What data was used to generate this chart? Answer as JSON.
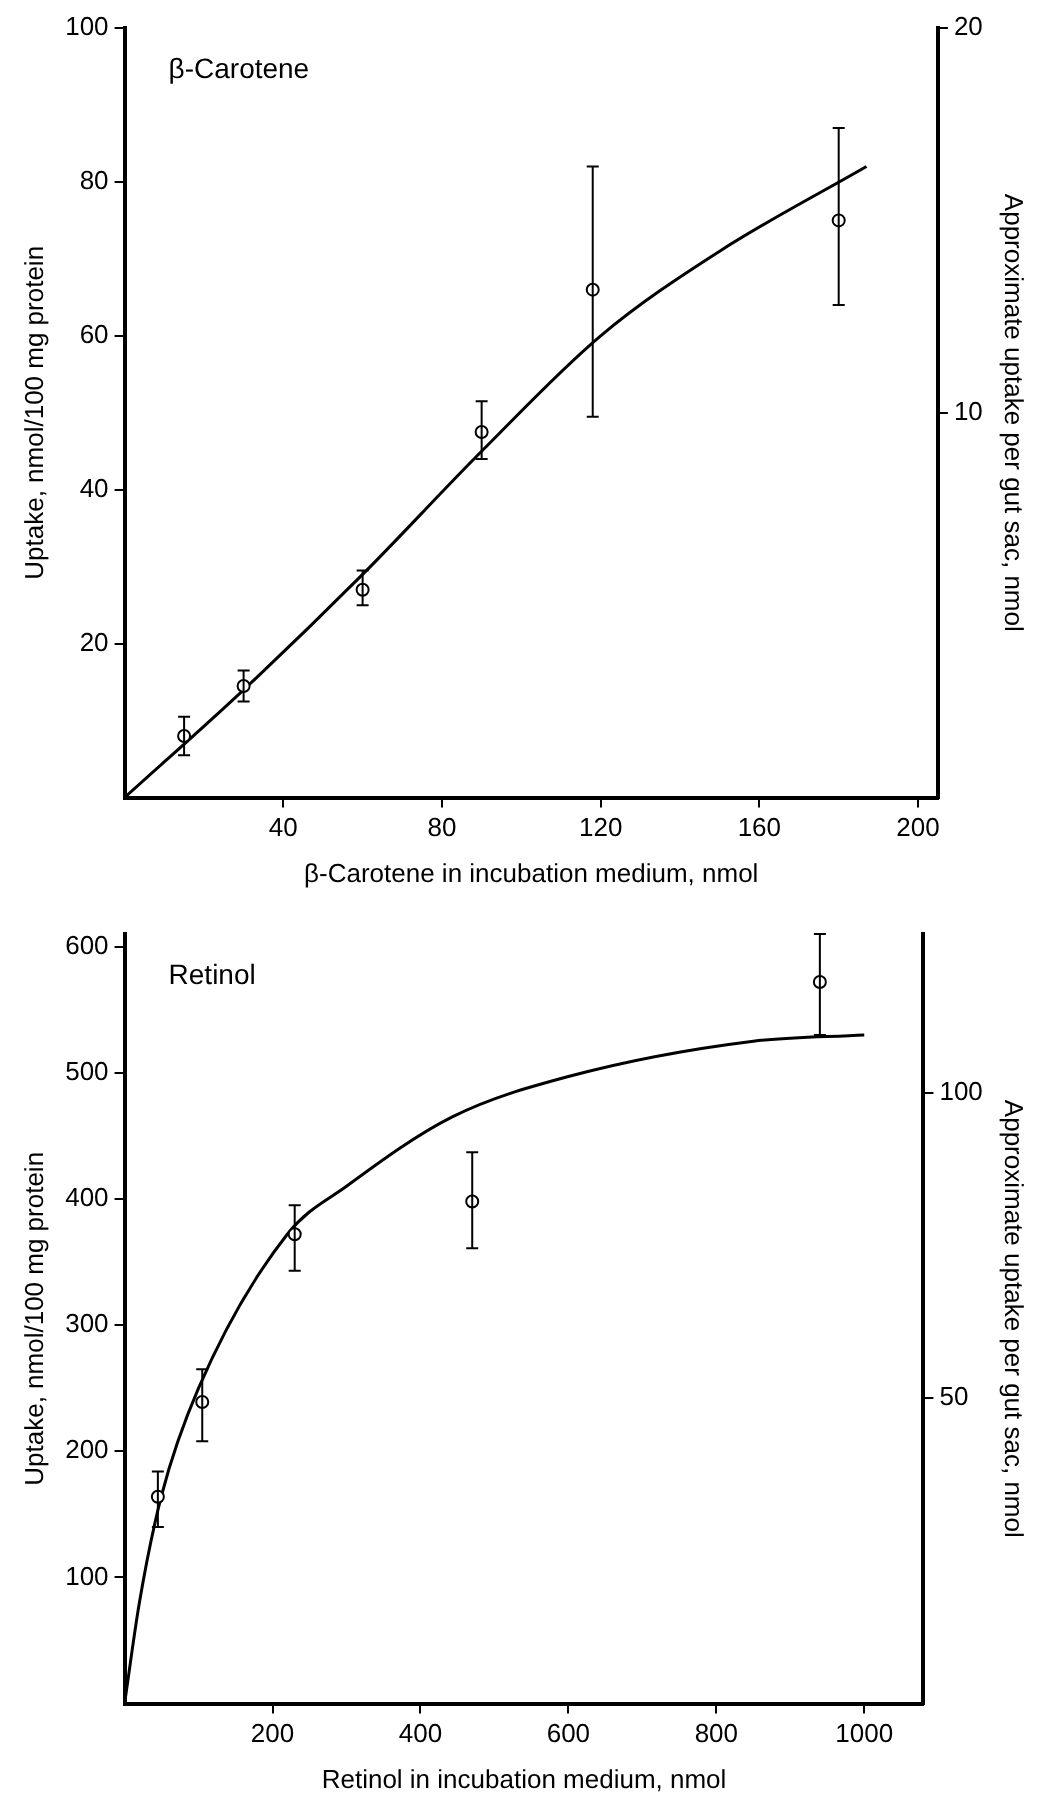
{
  "chart_data": [
    {
      "type": "scatter",
      "title": "β-Carotene",
      "xlabel": "β-Carotene in incubation medium, nmol",
      "ylabel": "Uptake, nmol/100 mg protein",
      "y2label": "Approximate uptake per gut sac, nmol",
      "xlim": [
        0,
        205
      ],
      "xticks": [
        40,
        80,
        120,
        160,
        200
      ],
      "ylim": [
        0,
        100
      ],
      "yticks": [
        20,
        40,
        60,
        80,
        100
      ],
      "y2lim": [
        0,
        20
      ],
      "y2ticks": [
        10,
        20
      ],
      "grid": false,
      "legend": false,
      "series": [
        {
          "type": "scatter",
          "marker": "circle",
          "color": "#000000",
          "x": [
            15,
            30,
            60,
            90,
            118,
            180
          ],
          "values": [
            8,
            14.5,
            27,
            47.5,
            66,
            75
          ],
          "errors": [
            [
              5.5,
              10.5
            ],
            [
              12.5,
              16.5
            ],
            [
              25,
              29.5
            ],
            [
              44,
              51.5
            ],
            [
              49.5,
              82
            ],
            [
              64,
              87
            ]
          ]
        },
        {
          "type": "line",
          "marker": "none",
          "color": "#000000",
          "x": [
            0,
            30,
            60,
            90,
            120,
            150,
            187
          ],
          "values": [
            0,
            14,
            29,
            45,
            60,
            71,
            82
          ]
        }
      ]
    },
    {
      "type": "scatter",
      "title": "Retinol",
      "xlabel": "Retinol in incubation medium, nmol",
      "ylabel": "Uptake, nmol/100 mg protein",
      "y2label": "Approximate uptake per gut sac, nmol",
      "xlim": [
        0,
        1080
      ],
      "xticks": [
        200,
        400,
        600,
        800,
        1000
      ],
      "ylim": [
        0,
        610
      ],
      "yticks": [
        100,
        200,
        300,
        400,
        500,
        600
      ],
      "y2lim": [
        0,
        126
      ],
      "y2ticks": [
        50,
        100
      ],
      "grid": false,
      "legend": false,
      "series": [
        {
          "type": "scatter",
          "marker": "circle",
          "color": "#000000",
          "x": [
            45,
            105,
            230,
            470,
            940
          ],
          "values": [
            164,
            239,
            372,
            398,
            572
          ],
          "errors": [
            [
              140,
              184
            ],
            [
              208,
              265
            ],
            [
              343,
              395
            ],
            [
              361,
              437
            ],
            [
              530,
              610
            ]
          ]
        },
        {
          "type": "line",
          "marker": "none",
          "color": "#000000",
          "x": [
            0,
            20,
            50,
            100,
            220,
            300,
            443,
            600,
            850,
            1000
          ],
          "values": [
            0,
            80,
            165,
            250,
            372,
            410,
            465,
            497,
            525,
            530
          ]
        }
      ]
    }
  ]
}
